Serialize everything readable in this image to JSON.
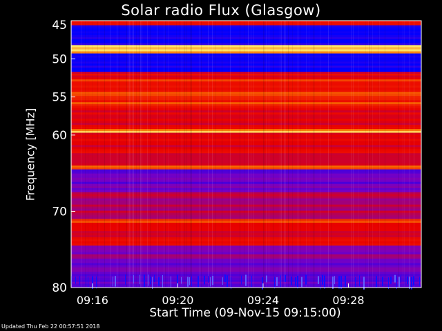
{
  "chart_data": {
    "type": "heatmap",
    "title": "Solar radio Flux (Glasgow)",
    "ylabel": "Frequency [MHz]",
    "xlabel": "Start Time (09-Nov-15 09:15:00)",
    "y_scale": "reversed",
    "ylim": [
      45,
      80
    ],
    "y_ticks": [
      45,
      50,
      55,
      60,
      70,
      80
    ],
    "x_start": "09:15:00",
    "x_end": "09:31:25",
    "x_ticks": [
      "09:16",
      "09:20",
      "09:24",
      "09:28"
    ],
    "colormap": "blue-red-yellow",
    "colors": {
      "low": "#0000ff",
      "mid": "#e60000",
      "high": "#ffff64"
    },
    "bands": [
      {
        "from": 45.0,
        "to": 45.6,
        "level": "high"
      },
      {
        "from": 45.6,
        "to": 48.2,
        "level": "very low"
      },
      {
        "from": 48.2,
        "to": 49.3,
        "level": "peak"
      },
      {
        "from": 49.3,
        "to": 51.7,
        "level": "very low"
      },
      {
        "from": 51.7,
        "to": 52.7,
        "level": "medium"
      },
      {
        "from": 52.7,
        "to": 56.5,
        "level": "high"
      },
      {
        "from": 56.5,
        "to": 59.2,
        "level": "medium"
      },
      {
        "from": 59.2,
        "to": 59.7,
        "level": "peak"
      },
      {
        "from": 59.7,
        "to": 64.0,
        "level": "medium"
      },
      {
        "from": 64.0,
        "to": 64.5,
        "level": "high"
      },
      {
        "from": 64.5,
        "to": 67.5,
        "level": "low"
      },
      {
        "from": 67.5,
        "to": 71.0,
        "level": "medium-low"
      },
      {
        "from": 71.0,
        "to": 71.5,
        "level": "high"
      },
      {
        "from": 71.5,
        "to": 74.5,
        "level": "medium"
      },
      {
        "from": 74.5,
        "to": 76.5,
        "level": "low-medium"
      },
      {
        "from": 76.5,
        "to": 78.5,
        "level": "low"
      },
      {
        "from": 78.5,
        "to": 80.0,
        "level": "mixed low"
      }
    ]
  },
  "footer": {
    "updated": "Updated Thu Feb 22 00:57:51 2018"
  }
}
